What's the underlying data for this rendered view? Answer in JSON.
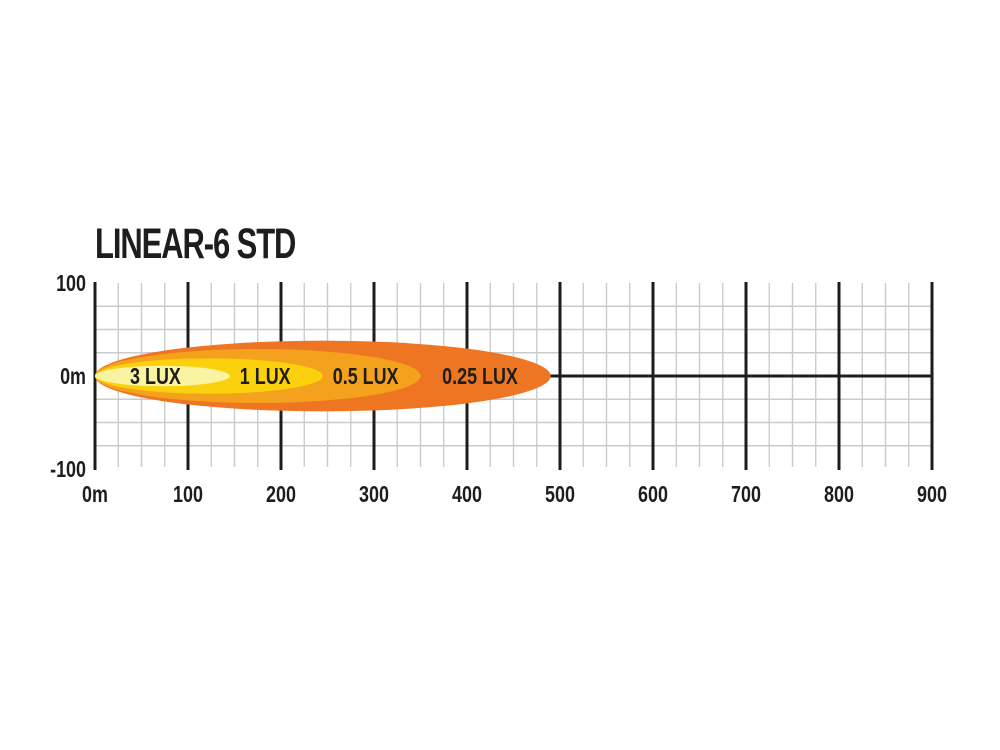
{
  "title": "LINEAR-6 STD",
  "chart_data": {
    "type": "area",
    "subtype": "isolux-beam-pattern",
    "title": "LINEAR-6 STD",
    "x_axis": {
      "unit": "m",
      "min": 0,
      "max": 900,
      "minor_step": 25,
      "major_step": 100,
      "tick_values": [
        0,
        100,
        200,
        300,
        400,
        500,
        600,
        700,
        800,
        900
      ],
      "tick_labels": [
        "0m",
        "100",
        "200",
        "300",
        "400",
        "500",
        "600",
        "700",
        "800",
        "900"
      ]
    },
    "y_axis": {
      "unit": "m",
      "min": -100,
      "max": 100,
      "minor_step": 25,
      "tick_values": [
        100,
        0,
        -100
      ],
      "tick_labels": [
        "100",
        "0m",
        "-100"
      ]
    },
    "grid": {
      "show": true,
      "minor_color": "#cbcbcb",
      "major_color": "#1d1d1b",
      "horizontal_minor_values": [
        75,
        50,
        25,
        -25,
        -50,
        -75
      ],
      "center_line_value": 0
    },
    "zones": [
      {
        "label": "3 LUX",
        "distance_m": 145,
        "half_width_m": 11,
        "color": "#FAF3A1",
        "label_pos_m": 65
      },
      {
        "label": "1 LUX",
        "distance_m": 245,
        "half_width_m": 19,
        "color": "#FBD10D",
        "label_pos_m": 183
      },
      {
        "label": "0.5 LUX",
        "distance_m": 350,
        "half_width_m": 29,
        "color": "#F4A11D",
        "label_pos_m": 291
      },
      {
        "label": "0.25 LUX",
        "distance_m": 490,
        "half_width_m": 38,
        "color": "#EE7622",
        "label_pos_m": 414
      }
    ],
    "text_color": "#1d1d1b"
  }
}
